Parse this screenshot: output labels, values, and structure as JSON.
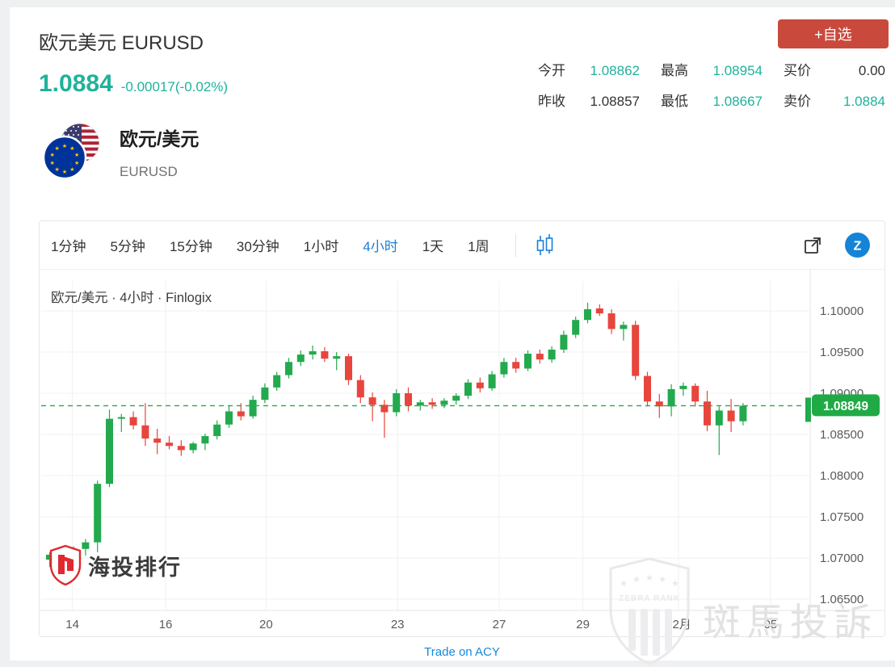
{
  "header": {
    "title": "欧元美元 EURUSD",
    "price": "1.0884",
    "change": "-0.00017(-0.02%)",
    "watchlist_button": "+自选",
    "stats": [
      {
        "label": "今开",
        "value": "1.08862",
        "teal": true
      },
      {
        "label": "最高",
        "value": "1.08954",
        "teal": true
      },
      {
        "label": "买价",
        "value": "0.00",
        "teal": false
      },
      {
        "label": "昨收",
        "value": "1.08857",
        "teal": false
      },
      {
        "label": "最低",
        "value": "1.08667",
        "teal": true
      },
      {
        "label": "卖价",
        "value": "1.0884",
        "teal": true
      }
    ]
  },
  "instrument": {
    "name_cn": "欧元/美元",
    "symbol": "EURUSD"
  },
  "toolbar": {
    "timeframes": [
      {
        "label": "1分钟",
        "active": false
      },
      {
        "label": "5分钟",
        "active": false
      },
      {
        "label": "15分钟",
        "active": false
      },
      {
        "label": "30分钟",
        "active": false
      },
      {
        "label": "1小时",
        "active": false
      },
      {
        "label": "4小时",
        "active": true
      },
      {
        "label": "1天",
        "active": false
      },
      {
        "label": "1周",
        "active": false
      }
    ],
    "icons": [
      "candlestick-style-icon",
      "external-link-icon",
      "z-brand-icon"
    ]
  },
  "chart_data": {
    "type": "candlestick",
    "legend": "欧元/美元 · 4小时 · Finlogix",
    "timeframe": "4小时",
    "provider": "Finlogix",
    "y_ticks": [
      1.1,
      1.095,
      1.09,
      1.085,
      1.08,
      1.075,
      1.07,
      1.065
    ],
    "y_tick_labels": [
      "1.10000",
      "1.09500",
      "1.09000",
      "1.08500",
      "1.08000",
      "1.07500",
      "1.07000",
      "1.06500"
    ],
    "x_ticks": [
      {
        "label": "14",
        "i": 1.9
      },
      {
        "label": "16",
        "i": 9.7
      },
      {
        "label": "20",
        "i": 18.1
      },
      {
        "label": "23",
        "i": 29.1
      },
      {
        "label": "27",
        "i": 37.6
      },
      {
        "label": "29",
        "i": 44.6
      },
      {
        "label": "12月",
        "i": 52.6
      },
      {
        "label": "05",
        "i": 60.3
      }
    ],
    "last_price": 1.08849,
    "last_price_label": "1.08849",
    "candles_ohlc": [
      [
        1.0698,
        1.0707,
        1.0689,
        1.0704
      ],
      [
        1.0704,
        1.0709,
        1.0692,
        1.0698
      ],
      [
        1.0698,
        1.0714,
        1.0695,
        1.0711
      ],
      [
        1.0711,
        1.0723,
        1.0703,
        1.0719
      ],
      [
        1.0719,
        1.0794,
        1.0707,
        1.079
      ],
      [
        1.079,
        1.088,
        1.0786,
        1.0869
      ],
      [
        1.0869,
        1.0875,
        1.0853,
        1.0871
      ],
      [
        1.0871,
        1.0878,
        1.0856,
        1.0861
      ],
      [
        1.0861,
        1.0888,
        1.0836,
        1.0845
      ],
      [
        1.0845,
        1.0857,
        1.0826,
        1.084
      ],
      [
        1.084,
        1.0848,
        1.0832,
        1.0836
      ],
      [
        1.0836,
        1.0843,
        1.0824,
        1.0831
      ],
      [
        1.0831,
        1.0841,
        1.0827,
        1.0839
      ],
      [
        1.0839,
        1.0851,
        1.0831,
        1.0848
      ],
      [
        1.0848,
        1.0867,
        1.0844,
        1.0862
      ],
      [
        1.0862,
        1.0885,
        1.0858,
        1.0878
      ],
      [
        1.0878,
        1.0888,
        1.0867,
        1.0872
      ],
      [
        1.0872,
        1.0897,
        1.0869,
        1.0892
      ],
      [
        1.0892,
        1.0912,
        1.0888,
        1.0907
      ],
      [
        1.0907,
        1.0926,
        1.0903,
        1.0922
      ],
      [
        1.0922,
        1.0943,
        1.0918,
        1.0938
      ],
      [
        1.0938,
        1.0952,
        1.0933,
        1.0947
      ],
      [
        1.0947,
        1.0958,
        1.0941,
        1.0951
      ],
      [
        1.0951,
        1.0956,
        1.0938,
        1.0942
      ],
      [
        1.0942,
        1.095,
        1.0928,
        1.0945
      ],
      [
        1.0945,
        1.0948,
        1.091,
        1.0916
      ],
      [
        1.0916,
        1.0922,
        1.0888,
        1.0895
      ],
      [
        1.0895,
        1.0901,
        1.0866,
        1.0886
      ],
      [
        1.0886,
        1.0892,
        1.0846,
        1.0877
      ],
      [
        1.0877,
        1.0905,
        1.0872,
        1.09
      ],
      [
        1.09,
        1.0907,
        1.0878,
        1.0885
      ],
      [
        1.0885,
        1.0892,
        1.0879,
        1.0889
      ],
      [
        1.0889,
        1.0894,
        1.0881,
        1.0886
      ],
      [
        1.0886,
        1.0894,
        1.0882,
        1.0891
      ],
      [
        1.0891,
        1.09,
        1.0886,
        1.0897
      ],
      [
        1.0897,
        1.0917,
        1.0893,
        1.0913
      ],
      [
        1.0913,
        1.0919,
        1.0901,
        1.0906
      ],
      [
        1.0906,
        1.0927,
        1.0903,
        1.0923
      ],
      [
        1.0923,
        1.0943,
        1.0919,
        1.0938
      ],
      [
        1.0938,
        1.0943,
        1.0925,
        1.093
      ],
      [
        1.093,
        1.0952,
        1.0927,
        1.0948
      ],
      [
        1.0948,
        1.0953,
        1.0936,
        1.0941
      ],
      [
        1.0941,
        1.0957,
        1.0937,
        1.0953
      ],
      [
        1.0953,
        1.0976,
        1.0949,
        1.0971
      ],
      [
        1.0971,
        1.0993,
        1.0967,
        1.0989
      ],
      [
        1.0989,
        1.101,
        1.0985,
        1.1002
      ],
      [
        1.1003,
        1.1008,
        1.0994,
        1.0997
      ],
      [
        1.0997,
        1.1002,
        1.0972,
        1.0978
      ],
      [
        1.0978,
        1.0987,
        1.0964,
        1.0983
      ],
      [
        1.0983,
        1.0988,
        1.0916,
        1.0921
      ],
      [
        1.0921,
        1.0926,
        1.0884,
        1.089
      ],
      [
        1.089,
        1.0899,
        1.087,
        1.0884
      ],
      [
        1.0884,
        1.0911,
        1.0872,
        1.0905
      ],
      [
        1.0905,
        1.0913,
        1.0897,
        1.0909
      ],
      [
        1.0909,
        1.0912,
        1.0884,
        1.089
      ],
      [
        1.089,
        1.0903,
        1.0854,
        1.0861
      ],
      [
        1.0861,
        1.0884,
        1.0825,
        1.0879
      ],
      [
        1.0879,
        1.0893,
        1.0853,
        1.0866
      ],
      [
        1.0866,
        1.0888,
        1.0861,
        1.08849
      ]
    ]
  },
  "footer": {
    "trade_link": "Trade on ACY"
  },
  "watermarks": {
    "logo_text": "海投排行",
    "zebra_text": "斑馬投訴",
    "zebra_badge": "ZEBRA RANK"
  },
  "colors": {
    "up_green": "#23a94e",
    "down_red": "#e8453d",
    "badge_green": "#1faa45",
    "accent_teal": "#1fb29b",
    "button_red": "#c94a3c",
    "tab_active_blue": "#1a7ed9",
    "grid": "#f0f0f1",
    "axis_line": "#e4e4e6",
    "tick_text": "#595a5e"
  }
}
